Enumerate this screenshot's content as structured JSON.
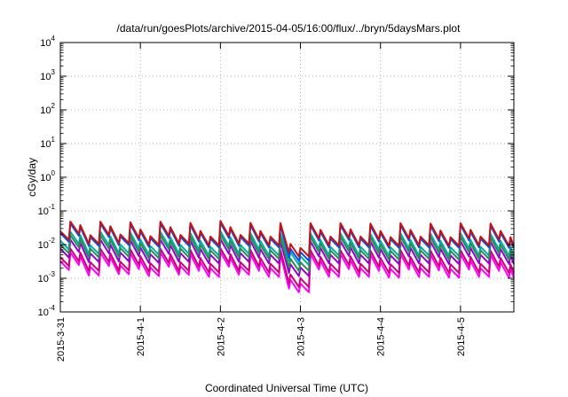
{
  "chart_data": {
    "type": "line",
    "title": "/data/run/goesPlots/archive/2015-04-05/16:00/flux/../bryn/5daysMars.plot",
    "xlabel": "Coordinated Universal Time (UTC)",
    "ylabel": "cGy/day",
    "yscale": "log",
    "ylim": [
      0.0001,
      10000
    ],
    "xlim": [
      "2015-03-31 00:00",
      "2015-04-05 16:00"
    ],
    "grid": true,
    "legend": "none",
    "x_ticks": [
      "2015-3-31",
      "2015-4-1",
      "2015-4-2",
      "2015-4-3",
      "2015-4-4",
      "2015-4-5"
    ],
    "y_ticks": [
      {
        "base": "10",
        "exp": "-4"
      },
      {
        "base": "10",
        "exp": "-3"
      },
      {
        "base": "10",
        "exp": "-2"
      },
      {
        "base": "10",
        "exp": "-1"
      },
      {
        "base": "10",
        "exp": "0"
      },
      {
        "base": "10",
        "exp": "1"
      },
      {
        "base": "10",
        "exp": "2"
      },
      {
        "base": "10",
        "exp": "3"
      },
      {
        "base": "10",
        "exp": "4"
      }
    ],
    "sample_step_hours": 3,
    "series_colors": [
      "#ff00ff",
      "#d0007a",
      "#9400d3",
      "#00b0a0",
      "#2e8b57",
      "#0050ff",
      "#c81010"
    ],
    "series": [
      {
        "values": [
          0.0032,
          0.0058,
          0.0045,
          0.0022,
          0.0058,
          0.0042,
          0.0024,
          0.0055,
          0.0034,
          0.0021,
          0.0058,
          0.004,
          0.0023,
          0.0053,
          0.003,
          0.002,
          0.006,
          0.004,
          0.0023,
          0.0053,
          0.003,
          0.002,
          0.0052,
          0.0009,
          0.0007,
          0.0052,
          0.0033,
          0.002,
          0.0052,
          0.0034,
          0.002,
          0.005,
          0.003,
          0.0019,
          0.0052,
          0.0033,
          0.002,
          0.005,
          0.0031,
          0.0019,
          0.0052,
          0.0033,
          0.002,
          0.005,
          0.003,
          0.0019,
          0.0052,
          0.0033
        ]
      },
      {
        "values": [
          0.0042,
          0.0075,
          0.0058,
          0.003,
          0.0075,
          0.0055,
          0.0031,
          0.0072,
          0.0045,
          0.0028,
          0.0075,
          0.0052,
          0.003,
          0.007,
          0.004,
          0.0027,
          0.0078,
          0.0052,
          0.003,
          0.007,
          0.004,
          0.0027,
          0.0068,
          0.0013,
          0.001,
          0.0068,
          0.0043,
          0.0027,
          0.0068,
          0.0045,
          0.0027,
          0.0066,
          0.004,
          0.0026,
          0.0068,
          0.0043,
          0.0027,
          0.0066,
          0.0041,
          0.0026,
          0.0068,
          0.0043,
          0.0027,
          0.0066,
          0.004,
          0.0026,
          0.0068,
          0.0043
        ]
      },
      {
        "values": [
          0.0075,
          0.014,
          0.011,
          0.0055,
          0.014,
          0.01,
          0.0058,
          0.0135,
          0.0082,
          0.0052,
          0.014,
          0.0096,
          0.0056,
          0.013,
          0.0074,
          0.005,
          0.0145,
          0.0096,
          0.0056,
          0.013,
          0.0074,
          0.005,
          0.0125,
          0.0026,
          0.0021,
          0.0125,
          0.008,
          0.005,
          0.0125,
          0.0083,
          0.005,
          0.0122,
          0.0074,
          0.0048,
          0.0125,
          0.008,
          0.005,
          0.0122,
          0.0076,
          0.0048,
          0.0125,
          0.008,
          0.005,
          0.0122,
          0.0074,
          0.0048,
          0.0125,
          0.008
        ]
      },
      {
        "values": [
          0.013,
          0.024,
          0.019,
          0.0095,
          0.024,
          0.0175,
          0.01,
          0.023,
          0.014,
          0.009,
          0.024,
          0.0165,
          0.0097,
          0.022,
          0.0128,
          0.0086,
          0.025,
          0.0165,
          0.0097,
          0.022,
          0.0128,
          0.0086,
          0.0215,
          0.006,
          0.0045,
          0.0215,
          0.0138,
          0.0086,
          0.0215,
          0.0143,
          0.0086,
          0.021,
          0.0128,
          0.0083,
          0.0215,
          0.0138,
          0.0086,
          0.021,
          0.013,
          0.0083,
          0.0215,
          0.0138,
          0.0086,
          0.021,
          0.0128,
          0.0083,
          0.0215,
          0.0138
        ]
      },
      {
        "values": [
          0.01,
          0.019,
          0.015,
          0.0075,
          0.019,
          0.0138,
          0.0079,
          0.0182,
          0.011,
          0.0071,
          0.019,
          0.013,
          0.0076,
          0.0174,
          0.01,
          0.0068,
          0.0198,
          0.013,
          0.0076,
          0.0174,
          0.01,
          0.0068,
          0.017,
          0.0038,
          0.003,
          0.017,
          0.0109,
          0.0068,
          0.017,
          0.0113,
          0.0068,
          0.0166,
          0.01,
          0.0065,
          0.017,
          0.0109,
          0.0068,
          0.0166,
          0.0103,
          0.0065,
          0.017,
          0.0109,
          0.0068,
          0.0166,
          0.01,
          0.0065,
          0.017,
          0.0109
        ]
      },
      {
        "values": [
          0.022,
          0.042,
          0.033,
          0.0165,
          0.042,
          0.0305,
          0.0175,
          0.04,
          0.0245,
          0.0155,
          0.042,
          0.0285,
          0.0168,
          0.0385,
          0.0222,
          0.015,
          0.044,
          0.0285,
          0.0168,
          0.0385,
          0.0222,
          0.015,
          0.0375,
          0.0075,
          0.006,
          0.0375,
          0.024,
          0.015,
          0.0375,
          0.025,
          0.015,
          0.0365,
          0.0222,
          0.0145,
          0.0375,
          0.024,
          0.015,
          0.0365,
          0.0228,
          0.0145,
          0.0375,
          0.024,
          0.015,
          0.0365,
          0.0222,
          0.0145,
          0.0375,
          0.024
        ]
      },
      {
        "values": [
          0.025,
          0.048,
          0.038,
          0.019,
          0.048,
          0.035,
          0.02,
          0.046,
          0.028,
          0.0178,
          0.048,
          0.033,
          0.0193,
          0.044,
          0.0255,
          0.0172,
          0.05,
          0.033,
          0.0193,
          0.044,
          0.0255,
          0.0172,
          0.043,
          0.0105,
          0.008,
          0.043,
          0.0275,
          0.0172,
          0.043,
          0.0286,
          0.0172,
          0.042,
          0.0255,
          0.0166,
          0.043,
          0.0275,
          0.0172,
          0.042,
          0.0262,
          0.0166,
          0.043,
          0.0275,
          0.0172,
          0.042,
          0.0255,
          0.0166,
          0.043,
          0.0275
        ]
      }
    ]
  }
}
